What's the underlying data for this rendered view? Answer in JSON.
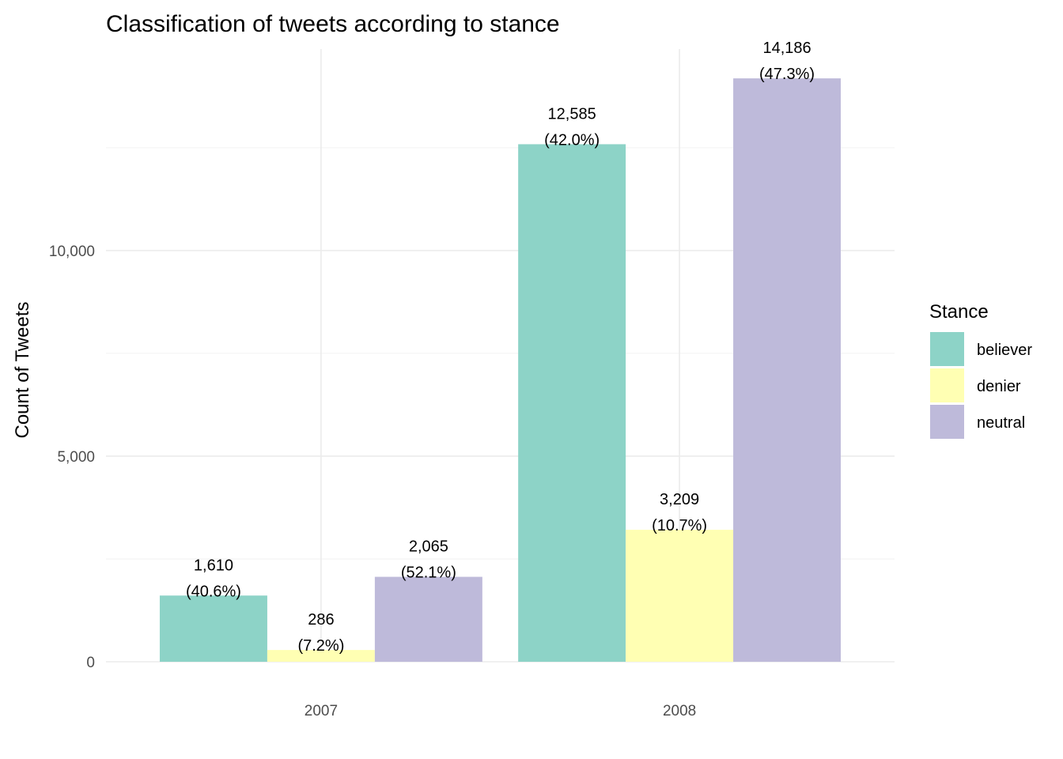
{
  "chart_data": {
    "type": "bar",
    "title": "Classification of tweets according to stance",
    "xlabel": "",
    "ylabel": "Count of Tweets",
    "categories": [
      "2007",
      "2008"
    ],
    "series": [
      {
        "name": "believer",
        "values": [
          1610,
          12585
        ],
        "labels": [
          "1,610",
          "12,585"
        ],
        "pct_labels": [
          "(40.6%)",
          "(42.0%)"
        ],
        "color": "#8DD3C7"
      },
      {
        "name": "denier",
        "values": [
          286,
          3209
        ],
        "labels": [
          "286",
          "3,209"
        ],
        "pct_labels": [
          "(7.2%)",
          "(10.7%)"
        ],
        "color": "#FFFFB3"
      },
      {
        "name": "neutral",
        "values": [
          2065,
          14186
        ],
        "labels": [
          "2,065",
          "14,186"
        ],
        "pct_labels": [
          "(52.1%)",
          "(47.3%)"
        ],
        "color": "#BEBADA"
      }
    ],
    "yticks": [
      0,
      5000,
      10000
    ],
    "ytick_labels": [
      "0",
      "5,000",
      "10,000"
    ],
    "ylim": [
      0,
      14900
    ],
    "grid": true,
    "legend": {
      "title": "Stance",
      "position": "right"
    }
  }
}
